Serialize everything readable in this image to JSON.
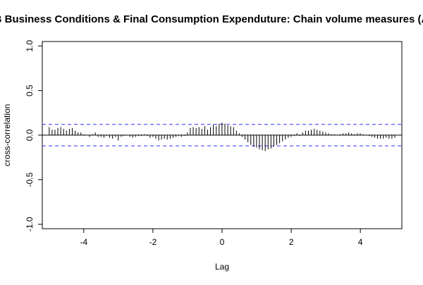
{
  "chart_data": {
    "type": "bar",
    "title": "AB Business Conditions & Final Consumption Expenduture: Chain volume measures (AU",
    "xlabel": "Lag",
    "ylabel": "cross-correlation",
    "xlim": [
      -5.2,
      5.2
    ],
    "ylim": [
      -1.05,
      1.05
    ],
    "xticks": [
      "-4",
      "-2",
      "0",
      "2",
      "4"
    ],
    "xtick_values": [
      -4,
      -2,
      0,
      2,
      4
    ],
    "yticks": [
      "-1.0",
      "-0.5",
      "0.0",
      "0.5",
      "1.0"
    ],
    "ytick_values": [
      -1.0,
      -0.5,
      0.0,
      0.5,
      1.0
    ],
    "confidence_limit": 0.12,
    "lag_start": -5.0,
    "lag_step": 0.0833,
    "values": [
      0.09,
      0.06,
      0.06,
      0.08,
      0.09,
      0.07,
      0.05,
      0.07,
      0.08,
      0.05,
      0.03,
      0.03,
      0.01,
      0.0,
      -0.02,
      0.01,
      0.03,
      -0.02,
      -0.02,
      -0.03,
      -0.01,
      -0.03,
      -0.04,
      -0.02,
      -0.06,
      -0.02,
      -0.01,
      0.0,
      -0.02,
      -0.03,
      -0.02,
      -0.01,
      -0.01,
      0.01,
      -0.01,
      -0.03,
      -0.02,
      -0.04,
      -0.06,
      -0.05,
      -0.04,
      -0.05,
      -0.04,
      -0.03,
      -0.02,
      -0.01,
      -0.02,
      -0.01,
      0.03,
      0.08,
      0.09,
      0.08,
      0.09,
      0.07,
      0.1,
      0.06,
      0.09,
      0.12,
      0.1,
      0.13,
      0.14,
      0.13,
      0.11,
      0.1,
      0.09,
      0.05,
      0.02,
      -0.02,
      -0.05,
      -0.08,
      -0.11,
      -0.13,
      -0.14,
      -0.16,
      -0.17,
      -0.18,
      -0.16,
      -0.15,
      -0.13,
      -0.11,
      -0.09,
      -0.07,
      -0.05,
      -0.03,
      -0.02,
      -0.01,
      0.02,
      -0.01,
      0.03,
      0.05,
      0.05,
      0.06,
      0.07,
      0.06,
      0.05,
      0.04,
      0.03,
      0.02,
      0.01,
      0.01,
      0.0,
      0.01,
      0.02,
      0.02,
      0.03,
      0.02,
      0.01,
      0.02,
      0.02,
      0.01,
      0.0,
      -0.01,
      -0.02,
      -0.03,
      -0.04,
      -0.04,
      -0.04,
      -0.03,
      -0.04,
      -0.04,
      -0.03
    ],
    "colors": {
      "bars": "#000000",
      "zero_line": "#000000",
      "confidence": "#3333ff",
      "frame": "#000000"
    }
  }
}
